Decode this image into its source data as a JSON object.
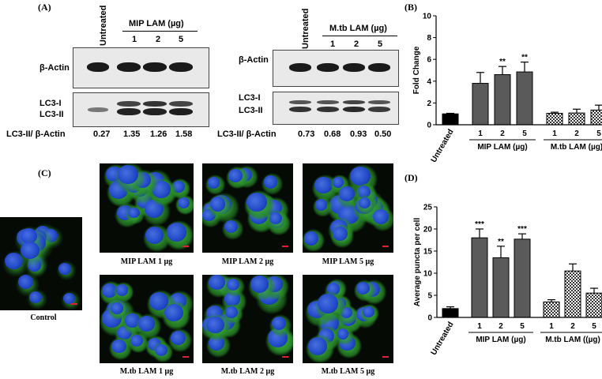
{
  "panelA": {
    "letter": "(A)",
    "left_blot": {
      "untreated_label": "Untreated",
      "group_label": "MIP LAM (µg)",
      "doses": [
        "1",
        "2",
        "5"
      ],
      "row1_label": "β-Actin",
      "row2_label_a": "LC3-I",
      "row2_label_b": "LC3-II",
      "ratio_label": "LC3-II/ β-Actin",
      "ratios": [
        "0.27",
        "1.35",
        "1.26",
        "1.58"
      ]
    },
    "right_blot": {
      "untreated_label": "Untreated",
      "group_label": "M.tb LAM (µg)",
      "doses": [
        "1",
        "2",
        "5"
      ],
      "row1_label": "β-Actin",
      "row2_label_a": "LC3-I",
      "row2_label_b": "LC3-II",
      "ratio_label": "LC3-II/ β-Actin",
      "ratios": [
        "0.73",
        "0.68",
        "0.93",
        "0.50"
      ]
    }
  },
  "panelB": {
    "letter": "(B)"
  },
  "panelC": {
    "letter": "(C)",
    "control_caption": "Control",
    "captions": [
      "MIP LAM 1 µg",
      "MIP LAM 2 µg",
      "MIP LAM 5 µg",
      "M.tb LAM 1 µg",
      "M.tb LAM 2 µg",
      "M.tb LAM 5 µg"
    ]
  },
  "panelD": {
    "letter": "(D)"
  },
  "colors": {
    "untreated_bar": "#000000",
    "mip_bar": "#5a5a5a",
    "mtb_bar": "#cfcfcf",
    "nucleus_blue": "#1f3fd8",
    "lc3_green": "#3cb43c"
  },
  "chart_data": [
    {
      "id": "B",
      "type": "bar",
      "ylabel": "Fold Change",
      "ylim": [
        0,
        10
      ],
      "yticks": [
        "0",
        "2",
        "4",
        "6",
        "8",
        "10"
      ],
      "categories": [
        "Untreated",
        "1",
        "2",
        "5",
        "1",
        "2",
        "5"
      ],
      "group_labels": [
        "MIP LAM (µg)",
        "M.tb LAM (µg)"
      ],
      "values": [
        1.0,
        3.8,
        4.6,
        4.85,
        1.05,
        1.08,
        1.35
      ],
      "errors": [
        0.05,
        1.0,
        0.75,
        0.9,
        0.1,
        0.35,
        0.45
      ],
      "significance": [
        "",
        "",
        "**",
        "**",
        "",
        "",
        ""
      ]
    },
    {
      "id": "D",
      "type": "bar",
      "ylabel": "Average puncta per cell",
      "ylim": [
        0,
        25
      ],
      "yticks": [
        "0",
        "5",
        "10",
        "15",
        "20",
        "25"
      ],
      "categories": [
        "Untreated",
        "1",
        "2",
        "5",
        "1",
        "2",
        "5"
      ],
      "group_labels": [
        "MIP LAM (µg)",
        "M.tb LAM ((µg)"
      ],
      "values": [
        2.0,
        18.0,
        13.5,
        17.7,
        3.5,
        10.5,
        5.5
      ],
      "errors": [
        0.4,
        2.0,
        2.6,
        1.2,
        0.5,
        1.6,
        1.1
      ],
      "significance": [
        "",
        "***",
        "**",
        "***",
        "",
        "",
        ""
      ]
    }
  ]
}
